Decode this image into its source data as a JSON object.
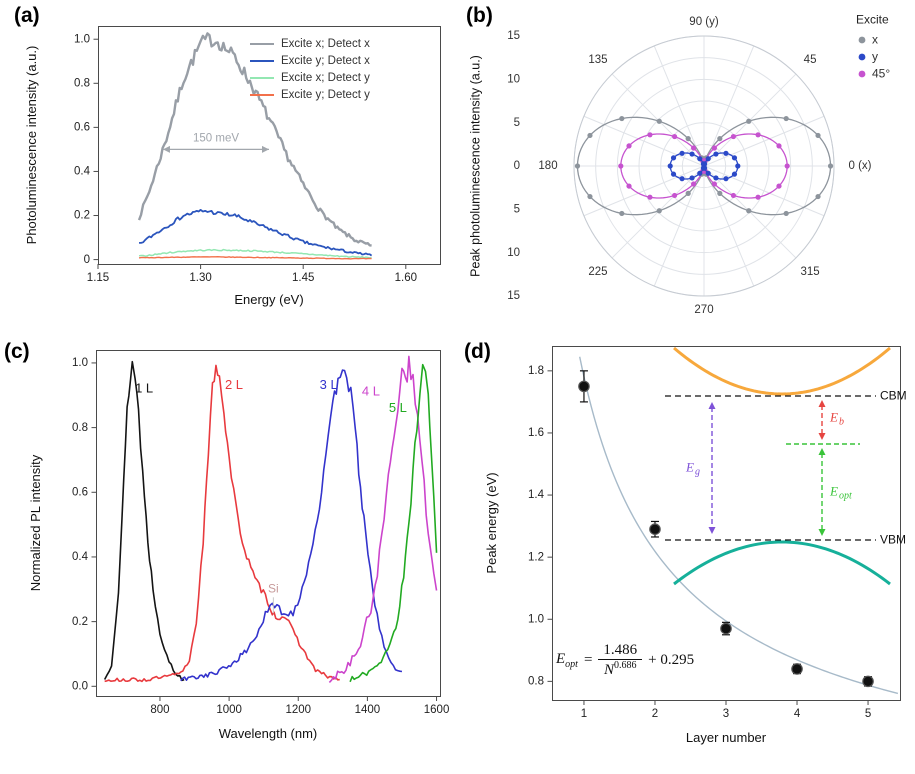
{
  "figure": {
    "background": "#ffffff"
  },
  "panels": {
    "a": {
      "label": "(a)"
    },
    "b": {
      "label": "(b)"
    },
    "c": {
      "label": "(c)"
    },
    "d": {
      "label": "(d)"
    }
  },
  "chart_data": [
    {
      "id": "a",
      "type": "line",
      "xlabel": "Energy (eV)",
      "ylabel": "Photoluminescence intensity (a.u.)",
      "xlim": [
        1.15,
        1.65
      ],
      "ylim": [
        -0.02,
        1.06
      ],
      "xticks": [
        1.15,
        1.3,
        1.45,
        1.6
      ],
      "yticks": [
        0,
        0.2,
        0.4,
        0.6,
        0.8,
        1.0
      ],
      "grid": false,
      "legend_position": "top-right",
      "annotation": {
        "text": "150 meV",
        "x1": 1.245,
        "x2": 1.4,
        "y": 0.5,
        "color": "#a2a7ad"
      },
      "x": [
        1.21,
        1.225,
        1.25,
        1.275,
        1.3,
        1.31,
        1.325,
        1.35,
        1.375,
        1.4,
        1.425,
        1.45,
        1.475,
        1.5,
        1.525,
        1.55
      ],
      "series": [
        {
          "name": "Excite x; Detect x",
          "color": "#989ea6",
          "values": [
            0.19,
            0.31,
            0.55,
            0.82,
            0.98,
            1.0,
            0.99,
            0.92,
            0.79,
            0.64,
            0.48,
            0.34,
            0.22,
            0.14,
            0.09,
            0.06
          ]
        },
        {
          "name": "Excite y; Detect x",
          "color": "#2b55bd",
          "values": [
            0.07,
            0.1,
            0.15,
            0.2,
            0.22,
            0.22,
            0.21,
            0.2,
            0.17,
            0.14,
            0.11,
            0.08,
            0.06,
            0.045,
            0.03,
            0.02
          ]
        },
        {
          "name": "Excite x; Detect y",
          "color": "#93e7b2",
          "values": [
            0.015,
            0.02,
            0.03,
            0.038,
            0.042,
            0.043,
            0.043,
            0.042,
            0.04,
            0.036,
            0.031,
            0.026,
            0.021,
            0.016,
            0.012,
            0.009
          ]
        },
        {
          "name": "Excite y; Detect y",
          "color": "#f2704a",
          "values": [
            0.008,
            0.009,
            0.01,
            0.011,
            0.012,
            0.012,
            0.012,
            0.011,
            0.01,
            0.009,
            0.008,
            0.007,
            0.006,
            0.005,
            0.004,
            0.004
          ]
        }
      ]
    },
    {
      "id": "b",
      "type": "polar-line",
      "ylabel": "Peak photoluminescence intensity (a.u.)",
      "rmax": 15,
      "ring_step": 2.5,
      "radial_labels": [
        "15",
        "10",
        "5",
        "0",
        "5",
        "10",
        "15"
      ],
      "angle_labels": [
        {
          "angle": 0,
          "text": "0 (x)"
        },
        {
          "angle": 45,
          "text": "45"
        },
        {
          "angle": 90,
          "text": "90 (y)"
        },
        {
          "angle": 135,
          "text": "135"
        },
        {
          "angle": 180,
          "text": "180"
        },
        {
          "angle": 225,
          "text": "225"
        },
        {
          "angle": 270,
          "text": "270"
        },
        {
          "angle": 315,
          "text": "315"
        }
      ],
      "legend_title": "Excite",
      "r_model": "r(theta) = A*cos^2(theta)",
      "marker_step_deg": 15,
      "series": [
        {
          "name": "x",
          "color": "#8d949c",
          "amplitude": 14.6
        },
        {
          "name": "y",
          "color": "#2b49c8",
          "amplitude": 3.9
        },
        {
          "name": "45°",
          "color": "#c653cf",
          "amplitude": 9.6
        }
      ]
    },
    {
      "id": "c",
      "type": "line",
      "xlabel": "Wavelength (nm)",
      "ylabel": "Normalized PL intensity",
      "xlim": [
        615,
        1610
      ],
      "ylim": [
        -0.03,
        1.04
      ],
      "xticks": [
        800,
        1000,
        1200,
        1400,
        1600
      ],
      "yticks": [
        0,
        0.2,
        0.4,
        0.6,
        0.8,
        1.0
      ],
      "si_marker": {
        "text": "Si",
        "x": 1128,
        "y": 0.3,
        "color": "#c79b9b"
      },
      "series": [
        {
          "label": "1 L",
          "color": "#141414",
          "noise": 0.05,
          "label_pos": [
            728,
            0.92
          ],
          "x": [
            640,
            660,
            680,
            695,
            705,
            715,
            720,
            728,
            738,
            750,
            765,
            780,
            800,
            820,
            845,
            870
          ],
          "y": [
            0.02,
            0.07,
            0.3,
            0.62,
            0.85,
            0.97,
            1.0,
            0.96,
            0.85,
            0.66,
            0.45,
            0.3,
            0.17,
            0.09,
            0.04,
            0.02
          ]
        },
        {
          "label": "2 L",
          "color": "#e83a3e",
          "noise": 0.04,
          "label_pos": [
            988,
            0.93
          ],
          "x": [
            640,
            700,
            760,
            820,
            860,
            885,
            905,
            925,
            940,
            952,
            962,
            972,
            985,
            1000,
            1020,
            1045,
            1075,
            1105,
            1125,
            1140,
            1160,
            1185,
            1215,
            1250,
            1285,
            1320
          ],
          "y": [
            0.02,
            0.02,
            0.02,
            0.03,
            0.04,
            0.08,
            0.2,
            0.45,
            0.72,
            0.92,
            1.0,
            0.96,
            0.85,
            0.7,
            0.55,
            0.42,
            0.33,
            0.28,
            0.23,
            0.21,
            0.22,
            0.17,
            0.11,
            0.05,
            0.03,
            0.02
          ]
        },
        {
          "label": "3 L",
          "color": "#3333cc",
          "noise": 0.05,
          "label_pos": [
            1262,
            0.93
          ],
          "x": [
            860,
            910,
            960,
            1010,
            1050,
            1080,
            1105,
            1125,
            1145,
            1165,
            1185,
            1205,
            1230,
            1255,
            1280,
            1300,
            1315,
            1328,
            1340,
            1352,
            1365,
            1380,
            1395,
            1415,
            1435,
            1455,
            1475,
            1500
          ],
          "y": [
            0.02,
            0.03,
            0.04,
            0.07,
            0.11,
            0.16,
            0.22,
            0.25,
            0.24,
            0.22,
            0.23,
            0.28,
            0.38,
            0.52,
            0.7,
            0.86,
            0.96,
            1.0,
            0.97,
            0.9,
            0.78,
            0.62,
            0.46,
            0.3,
            0.18,
            0.1,
            0.06,
            0.04
          ]
        },
        {
          "label": "4 L",
          "color": "#cc44cc",
          "noise": 0.08,
          "label_pos": [
            1384,
            0.91
          ],
          "x": [
            1290,
            1320,
            1350,
            1380,
            1410,
            1435,
            1455,
            1472,
            1488,
            1500,
            1510,
            1520,
            1532,
            1545,
            1558,
            1570,
            1582,
            1592,
            1600
          ],
          "y": [
            0.02,
            0.04,
            0.07,
            0.13,
            0.24,
            0.4,
            0.58,
            0.75,
            0.89,
            0.96,
            1.0,
            0.98,
            0.93,
            0.84,
            0.7,
            0.55,
            0.42,
            0.33,
            0.28
          ]
        },
        {
          "label": "5 L",
          "color": "#22aa22",
          "noise": 0.06,
          "label_pos": [
            1462,
            0.86
          ],
          "x": [
            1350,
            1380,
            1410,
            1440,
            1465,
            1488,
            1505,
            1520,
            1532,
            1543,
            1552,
            1560,
            1568,
            1576,
            1585,
            1592,
            1600
          ],
          "y": [
            0.02,
            0.03,
            0.05,
            0.08,
            0.13,
            0.21,
            0.34,
            0.5,
            0.66,
            0.82,
            0.93,
            1.0,
            0.97,
            0.88,
            0.72,
            0.58,
            0.42
          ]
        }
      ]
    },
    {
      "id": "d",
      "type": "scatter",
      "xlabel": "Layer number",
      "ylabel": "Peak energy (eV)",
      "xlim": [
        0.55,
        5.45
      ],
      "ylim": [
        0.74,
        1.88
      ],
      "xticks": [
        1,
        2,
        3,
        4,
        5
      ],
      "yticks": [
        0.8,
        1.0,
        1.2,
        1.4,
        1.6,
        1.8
      ],
      "points": {
        "x": [
          1,
          2,
          3,
          4,
          5
        ],
        "y": [
          1.75,
          1.29,
          0.97,
          0.84,
          0.8
        ],
        "yerr": [
          0.05,
          0.025,
          0.02,
          0.015,
          0.015
        ],
        "color": "#111111"
      },
      "fit": {
        "expression": "E_opt = 1.486/N^0.686 + 0.295",
        "A": 1.486,
        "p": 0.686,
        "C": 0.295,
        "color": "#a7bac9"
      },
      "formula": {
        "lhs_base": "E",
        "lhs_sub": "opt",
        "equals": "=",
        "numerator": "1.486",
        "den_base": "N",
        "den_exp": "0.686",
        "tail": "+ 0.295"
      },
      "inset": {
        "cbm_label": "CBM",
        "vbm_label": "VBM",
        "eg_base": "E",
        "eg_sub": "g",
        "eb_base": "E",
        "eb_sub": "b",
        "eopt_base": "E",
        "eopt_sub": "opt",
        "conduction_color": "#f7a83c",
        "valence_color": "#16b09a",
        "eg_color": "#7e52d8",
        "eb_color": "#e64540",
        "eopt_color": "#39c439"
      }
    }
  ]
}
